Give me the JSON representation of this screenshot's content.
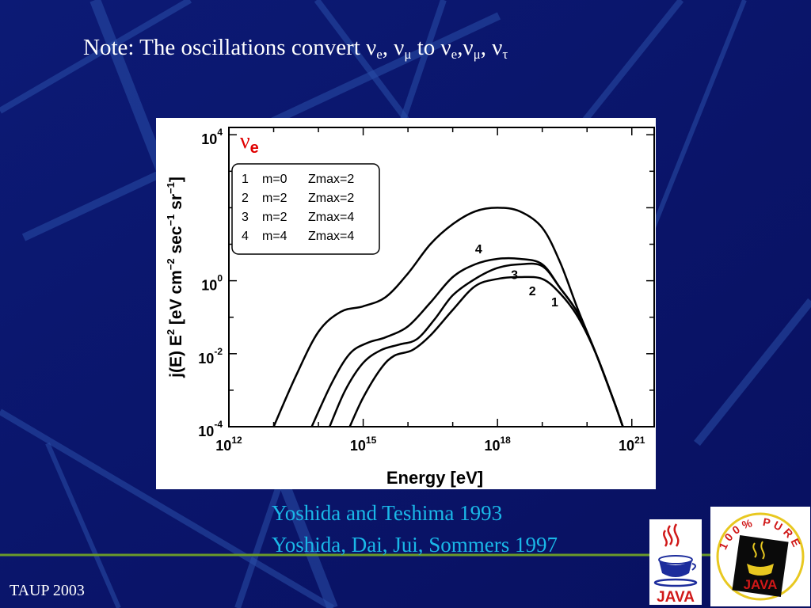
{
  "slide": {
    "note_prefix": "Note: The oscillations convert ",
    "note_segments": [
      {
        "t": "ν",
        "sub": "e"
      },
      {
        "t": ", ν",
        "sub": "μ"
      },
      {
        "t": " to ν",
        "sub": "e"
      },
      {
        "t": ",ν",
        "sub": "μ"
      },
      {
        "t": ", ν",
        "sub": "τ"
      }
    ],
    "references": [
      "Yoshida and Teshima 1993",
      "Yoshida, Dai, Jui, Sommers 1997"
    ],
    "footer": "TAUP 2003",
    "logo_text": "JAVA",
    "badge_text": "100% PURE",
    "colors": {
      "background": "#0a1468",
      "reference_text": "#1ab8e8",
      "green_rule": "#6b9a2a"
    }
  },
  "chart_data": {
    "type": "line",
    "flavor": {
      "symbol": "ν",
      "sub": "e",
      "color": "#e00000"
    },
    "xlabel": "Energy [eV]",
    "ylabel_parts": {
      "a": "j(E) E",
      "a_sup": "2",
      "b": " [eV cm",
      "b_sup": "−2",
      "c": " sec",
      "c_sup": "−1",
      "d": " sr",
      "d_sup": "−1",
      "e": "]"
    },
    "xscale": "log",
    "yscale": "log",
    "xlim_log10": [
      12,
      21.5
    ],
    "ylim_log10": [
      -4,
      4.2
    ],
    "xticks": [
      {
        "base": "10",
        "exp": "12",
        "v": 12
      },
      {
        "base": "10",
        "exp": "15",
        "v": 15
      },
      {
        "base": "10",
        "exp": "18",
        "v": 18
      },
      {
        "base": "10",
        "exp": "21",
        "v": 21
      }
    ],
    "yticks": [
      {
        "base": "10",
        "exp": "4",
        "v": 4
      },
      {
        "base": "10",
        "exp": "0",
        "v": 0
      },
      {
        "base": "10",
        "exp": "-2",
        "v": -2
      },
      {
        "base": "10",
        "exp": "-4",
        "v": -4
      }
    ],
    "legend": {
      "placement": "top-left",
      "rows": [
        {
          "id": "1",
          "m": "m=0",
          "z": "Zmax=2"
        },
        {
          "id": "2",
          "m": "m=2",
          "z": "Zmax=2"
        },
        {
          "id": "3",
          "m": "m=2",
          "z": "Zmax=4"
        },
        {
          "id": "4",
          "m": "m=4",
          "z": "Zmax=4"
        }
      ]
    },
    "series": [
      {
        "label": "1",
        "label_at": [
          19.2,
          -0.7
        ],
        "points": [
          [
            14.7,
            -4
          ],
          [
            15.0,
            -3.2
          ],
          [
            15.4,
            -2.4
          ],
          [
            15.7,
            -2.05
          ],
          [
            16.1,
            -1.9
          ],
          [
            16.5,
            -1.5
          ],
          [
            17.0,
            -0.8
          ],
          [
            17.5,
            -0.15
          ],
          [
            18.0,
            0.05
          ],
          [
            18.5,
            0.1
          ],
          [
            19.0,
            0.05
          ],
          [
            19.4,
            -0.35
          ],
          [
            19.8,
            -1.0
          ],
          [
            20.2,
            -2.0
          ],
          [
            20.6,
            -3.3
          ],
          [
            20.8,
            -4
          ]
        ]
      },
      {
        "label": "2",
        "label_at": [
          18.7,
          -0.4
        ],
        "points": [
          [
            14.25,
            -4
          ],
          [
            14.6,
            -3.0
          ],
          [
            15.0,
            -2.25
          ],
          [
            15.4,
            -1.9
          ],
          [
            15.8,
            -1.75
          ],
          [
            16.2,
            -1.6
          ],
          [
            16.6,
            -1.05
          ],
          [
            17.0,
            -0.4
          ],
          [
            17.5,
            0.05
          ],
          [
            18.0,
            0.35
          ],
          [
            18.5,
            0.45
          ],
          [
            19.0,
            0.4
          ],
          [
            19.4,
            -0.2
          ],
          [
            19.8,
            -0.9
          ],
          [
            20.2,
            -2.0
          ],
          [
            20.6,
            -3.3
          ],
          [
            20.8,
            -4
          ]
        ]
      },
      {
        "label": "3",
        "label_at": [
          18.3,
          0.05
        ],
        "points": [
          [
            13.85,
            -4
          ],
          [
            14.3,
            -2.8
          ],
          [
            14.7,
            -2.0
          ],
          [
            15.1,
            -1.7
          ],
          [
            15.5,
            -1.55
          ],
          [
            16.0,
            -1.25
          ],
          [
            16.5,
            -0.6
          ],
          [
            17.0,
            0.1
          ],
          [
            17.5,
            0.45
          ],
          [
            18.0,
            0.6
          ],
          [
            18.5,
            0.6
          ],
          [
            19.0,
            0.45
          ],
          [
            19.4,
            -0.2
          ],
          [
            19.8,
            -0.9
          ],
          [
            20.2,
            -2.0
          ],
          [
            20.6,
            -3.3
          ],
          [
            20.8,
            -4
          ]
        ]
      },
      {
        "label": "4",
        "label_at": [
          17.5,
          0.75
        ],
        "points": [
          [
            13.0,
            -4
          ],
          [
            13.5,
            -2.6
          ],
          [
            14.0,
            -1.4
          ],
          [
            14.5,
            -0.85
          ],
          [
            15.0,
            -0.7
          ],
          [
            15.5,
            -0.45
          ],
          [
            16.0,
            0.2
          ],
          [
            16.5,
            1.0
          ],
          [
            17.0,
            1.55
          ],
          [
            17.5,
            1.9
          ],
          [
            18.0,
            2.0
          ],
          [
            18.5,
            1.9
          ],
          [
            19.0,
            1.45
          ],
          [
            19.4,
            0.5
          ],
          [
            19.8,
            -0.8
          ],
          [
            20.2,
            -2.0
          ],
          [
            20.6,
            -3.3
          ],
          [
            20.8,
            -4
          ]
        ]
      }
    ]
  }
}
